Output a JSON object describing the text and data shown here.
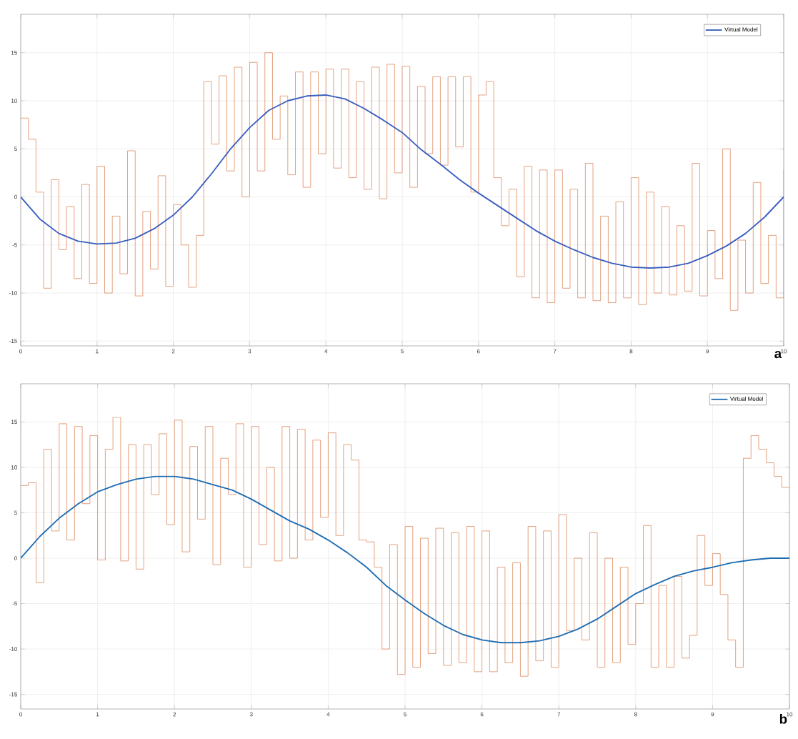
{
  "chart_data": [
    {
      "type": "line",
      "x": [
        0,
        0.25,
        0.5,
        0.75,
        1,
        1.25,
        1.5,
        1.75,
        2,
        2.25,
        2.5,
        2.75,
        3,
        3.25,
        3.5,
        3.75,
        4,
        4.25,
        4.5,
        4.75,
        5,
        5.25,
        5.5,
        5.75,
        6,
        6.25,
        6.5,
        6.75,
        7,
        7.25,
        7.5,
        7.75,
        8,
        8.25,
        8.5,
        8.75,
        9,
        9.25,
        9.5,
        9.75,
        10
      ],
      "series": [
        {
          "type": "step",
          "color": "#dd8a60",
          "x": [
            0,
            0.1,
            0.2,
            0.3,
            0.4,
            0.5,
            0.6,
            0.7,
            0.8,
            0.9,
            1,
            1.1,
            1.2,
            1.3,
            1.4,
            1.5,
            1.6,
            1.7,
            1.8,
            1.9,
            2,
            2.1,
            2.2,
            2.3,
            2.4,
            2.5,
            2.6,
            2.7,
            2.8,
            2.9,
            3,
            3.1,
            3.2,
            3.3,
            3.4,
            3.5,
            3.6,
            3.7,
            3.8,
            3.9,
            4,
            4.1,
            4.2,
            4.3,
            4.4,
            4.5,
            4.6,
            4.7,
            4.8,
            4.9,
            5,
            5.1,
            5.2,
            5.3,
            5.4,
            5.5,
            5.6,
            5.7,
            5.8,
            5.9,
            6,
            6.1,
            6.2,
            6.3,
            6.4,
            6.5,
            6.6,
            6.7,
            6.8,
            6.9,
            7,
            7.1,
            7.2,
            7.3,
            7.4,
            7.5,
            7.6,
            7.7,
            7.8,
            7.9,
            8,
            8.1,
            8.2,
            8.3,
            8.4,
            8.5,
            8.6,
            8.7,
            8.8,
            8.9,
            9,
            9.1,
            9.2,
            9.3,
            9.4,
            9.5,
            9.6,
            9.7,
            9.8,
            9.9,
            10
          ],
          "values": [
            8.2,
            6,
            0.5,
            -9.5,
            1.8,
            -5.5,
            -1,
            -8.5,
            1.3,
            -9,
            3.2,
            -10,
            -2,
            -8,
            4.8,
            -10.3,
            -1.5,
            -7.5,
            2.2,
            -9.3,
            -0.8,
            -5,
            -9.4,
            -4,
            12,
            5.5,
            12.6,
            2.7,
            13.5,
            0,
            14,
            2.7,
            15,
            6,
            10.5,
            2.3,
            13,
            1,
            13,
            4.5,
            13.3,
            3,
            13.3,
            2,
            12,
            0.8,
            13.5,
            -0.2,
            13.8,
            2.5,
            13.6,
            1,
            11.5,
            4.5,
            12.5,
            3.3,
            12.5,
            5.2,
            12.5,
            0.5,
            10.6,
            12,
            2,
            -3,
            0.8,
            -8.3,
            3.2,
            -10.5,
            2.8,
            -11,
            2.8,
            -9.5,
            0.8,
            -10.5,
            3.5,
            -10.8,
            -2,
            -11,
            -0.5,
            -10.5,
            2,
            -11.2,
            0.5,
            -10,
            -1,
            -10.2,
            -3,
            -9.8,
            3.5,
            -10.3,
            -3.5,
            -8.5,
            5,
            -11.8,
            -4.5,
            -10,
            1.5,
            -9,
            -4,
            -10.5,
            2.8
          ]
        },
        {
          "name": "Virtual Model",
          "color": "#3a5fc0",
          "values": [
            0,
            -2.3,
            -3.8,
            -4.6,
            -4.9,
            -4.8,
            -4.3,
            -3.3,
            -1.9,
            0,
            2.4,
            5,
            7.2,
            9,
            10,
            10.5,
            10.6,
            10.2,
            9.2,
            8,
            6.7,
            4.9,
            3.4,
            1.8,
            0.4,
            -0.9,
            -2.2,
            -3.5,
            -4.6,
            -5.5,
            -6.3,
            -6.9,
            -7.3,
            -7.4,
            -7.3,
            -6.9,
            -6.1,
            -5.1,
            -3.8,
            -2.1,
            0
          ]
        }
      ],
      "xlim": [
        0,
        10
      ],
      "ylim": [
        -15.5,
        19
      ],
      "xticks": [
        0,
        1,
        2,
        3,
        4,
        5,
        6,
        7,
        8,
        9,
        10
      ],
      "yticks": [
        -15,
        -10,
        -5,
        0,
        5,
        10,
        15
      ],
      "grid": true,
      "legend": "top right",
      "annotations": [
        "a"
      ]
    },
    {
      "type": "line",
      "x": [
        0,
        0.25,
        0.5,
        0.75,
        1,
        1.25,
        1.5,
        1.75,
        2,
        2.25,
        2.5,
        2.75,
        3,
        3.25,
        3.5,
        3.75,
        4,
        4.25,
        4.5,
        4.75,
        5,
        5.25,
        5.5,
        5.75,
        6,
        6.25,
        6.5,
        6.75,
        7,
        7.25,
        7.5,
        7.75,
        8,
        8.25,
        8.5,
        8.75,
        9,
        9.25,
        9.5,
        9.75,
        10
      ],
      "series": [
        {
          "type": "step",
          "color": "#dd8a60",
          "x": [
            0,
            0.1,
            0.2,
            0.3,
            0.4,
            0.5,
            0.6,
            0.7,
            0.8,
            0.9,
            1,
            1.1,
            1.2,
            1.3,
            1.4,
            1.5,
            1.6,
            1.7,
            1.8,
            1.9,
            2,
            2.1,
            2.2,
            2.3,
            2.4,
            2.5,
            2.6,
            2.7,
            2.8,
            2.9,
            3,
            3.1,
            3.2,
            3.3,
            3.4,
            3.5,
            3.6,
            3.7,
            3.8,
            3.9,
            4,
            4.1,
            4.2,
            4.3,
            4.4,
            4.5,
            4.6,
            4.7,
            4.8,
            4.9,
            5,
            5.1,
            5.2,
            5.3,
            5.4,
            5.5,
            5.6,
            5.7,
            5.8,
            5.9,
            6,
            6.1,
            6.2,
            6.3,
            6.4,
            6.5,
            6.6,
            6.7,
            6.8,
            6.9,
            7,
            7.1,
            7.2,
            7.3,
            7.4,
            7.5,
            7.6,
            7.7,
            7.8,
            7.9,
            8,
            8.1,
            8.2,
            8.3,
            8.4,
            8.5,
            8.6,
            8.7,
            8.8,
            8.9,
            9,
            9.1,
            9.2,
            9.3,
            9.4,
            9.5,
            9.6,
            9.7,
            9.8,
            9.9,
            10
          ],
          "values": [
            8,
            8.3,
            -2.7,
            12,
            3,
            14.8,
            2,
            14.5,
            6,
            13.5,
            -0.2,
            12,
            15.5,
            -0.3,
            12.5,
            -1.2,
            12.5,
            7,
            13.7,
            3.7,
            15.2,
            0.7,
            12.3,
            4.3,
            14.5,
            -0.7,
            11,
            7,
            14.8,
            -1,
            14.5,
            1.5,
            10,
            -0.3,
            14.5,
            0,
            14.2,
            2,
            13,
            4.5,
            13.8,
            2.5,
            12.5,
            10.8,
            2,
            1.8,
            -1,
            -10,
            1.5,
            -12.8,
            3.5,
            -12,
            2.2,
            -10.5,
            3.3,
            -11.8,
            2.8,
            -11.5,
            3.5,
            -12.5,
            3,
            -12.5,
            -1,
            -11.5,
            -0.5,
            -13,
            3.5,
            -11.3,
            3,
            -12,
            4.8,
            -8,
            0,
            -9,
            2.8,
            -12,
            0,
            -11.5,
            -1,
            -9.5,
            -5,
            3.6,
            -12,
            -3,
            -12,
            -2,
            -11,
            -8.5,
            2.5,
            -3,
            0.5,
            -4,
            -9,
            -12,
            11,
            13.5,
            12,
            10.5,
            9,
            7.8,
            7.8
          ]
        },
        {
          "name": "Virtual Model",
          "color": "#1f6eb4",
          "values": [
            0,
            2.4,
            4.4,
            6,
            7.3,
            8.1,
            8.7,
            9,
            9,
            8.7,
            8.1,
            7.5,
            6.5,
            5.3,
            4.1,
            3.2,
            2,
            0.6,
            -1,
            -3,
            -4.6,
            -6.1,
            -7.4,
            -8.4,
            -9,
            -9.3,
            -9.3,
            -9.1,
            -8.6,
            -7.8,
            -6.7,
            -5.3,
            -3.9,
            -2.9,
            -2,
            -1.4,
            -1,
            -0.5,
            -0.2,
            0,
            0
          ]
        }
      ],
      "xlim": [
        0,
        10
      ],
      "ylim": [
        -16.6,
        19.2
      ],
      "xticks": [
        0,
        1,
        2,
        3,
        4,
        5,
        6,
        7,
        8,
        9,
        10
      ],
      "yticks": [
        -15,
        -10,
        -5,
        0,
        5,
        10,
        15
      ],
      "grid": true,
      "legend": "top right",
      "annotations": [
        "b"
      ]
    }
  ]
}
